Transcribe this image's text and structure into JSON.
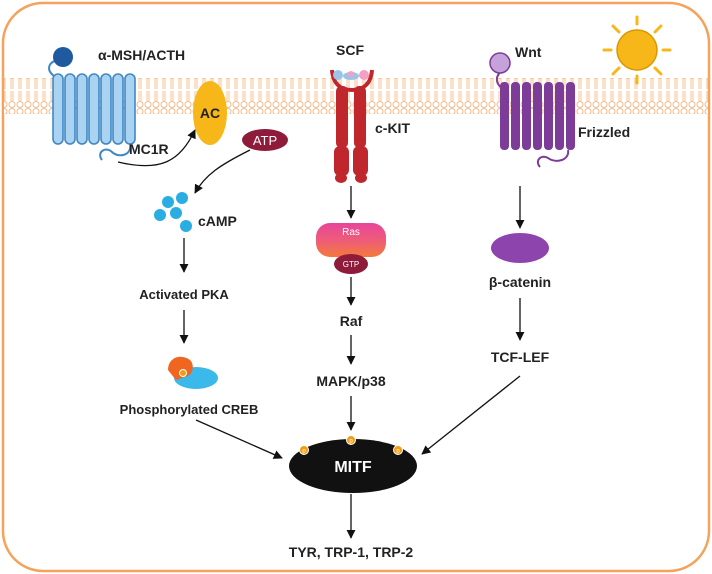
{
  "labels": {
    "msh": "α-MSH/ACTH",
    "mc1r": "MC1R",
    "ac": "AC",
    "atp": "ATP",
    "camp": "cAMP",
    "pka": "Activated PKA",
    "creb": "Phosphorylated CREB",
    "scf": "SCF",
    "ckit": "c-KIT",
    "ras": "Ras",
    "gtp": "GTP",
    "raf": "Raf",
    "mapk": "MAPK/p38",
    "wnt": "Wnt",
    "frizzled": "Frizzled",
    "bcatenin": "β-catenin",
    "tcf": "TCF-LEF",
    "mitf": "MITF",
    "output": "TYR, TRP-1, TRP-2",
    "phospho": "p"
  },
  "icons": {
    "sun": "sun-icon",
    "cell": "cell-boundary"
  },
  "colors": {
    "cell_border": "#f5a25a",
    "membrane": "#f6b98a",
    "mc1r": "#a9d3f0",
    "mc1r_stroke": "#3f88c5",
    "ligand_blue": "#1f5aa0",
    "ac": "#f7b718",
    "atp": "#8e1b3a",
    "camp": "#2aaee2",
    "ckit": "#c0272d",
    "scf_pink": "#f4a0c0",
    "scf_blue": "#9cc4e8",
    "ras_top": "#e7459a",
    "ras_bottom": "#f4793b",
    "gtp": "#8e1b3a",
    "frizzled": "#7d3c98",
    "wnt_light": "#c5a2d9",
    "bcatenin": "#8e44ad",
    "mitf": "#111111",
    "phospho": "#f39c12",
    "creb_orange": "#f0651f",
    "creb_blue": "#3bb9ea",
    "sun": "#f7b718"
  }
}
